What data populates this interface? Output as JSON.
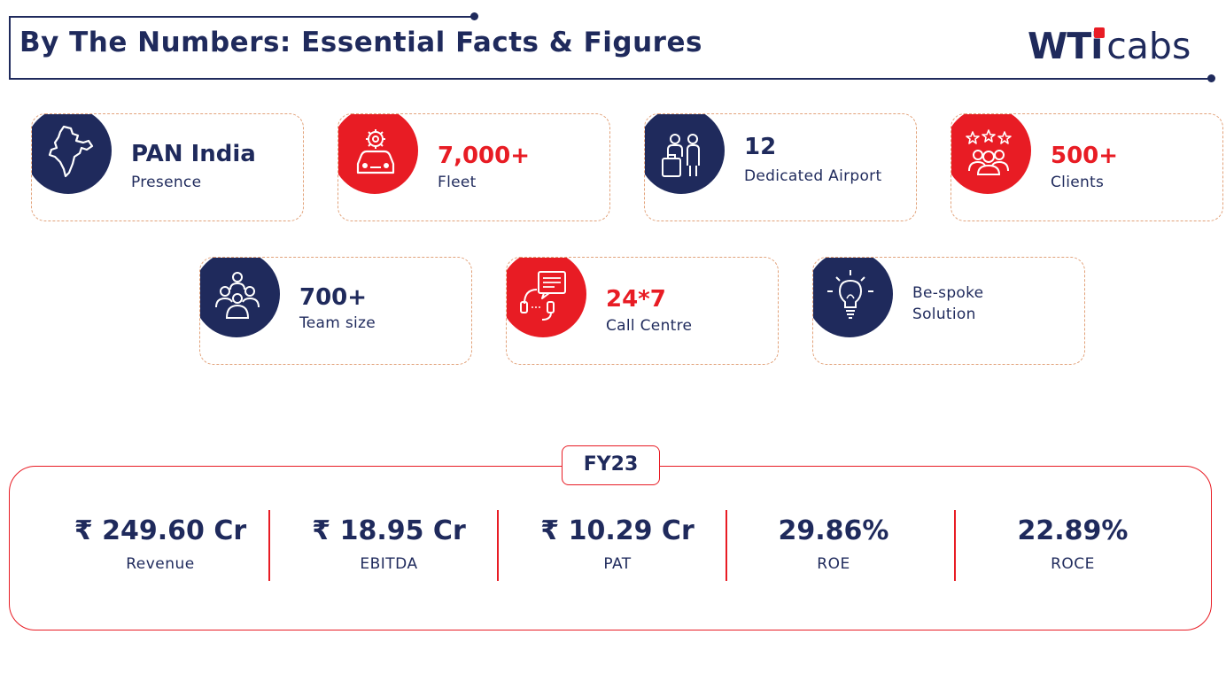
{
  "header": {
    "title": "By The Numbers: Essential Facts & Figures",
    "logo": {
      "part1": "WT",
      "part2": "i",
      "part3": "cabs"
    }
  },
  "colors": {
    "navy": "#1f2a5c",
    "red": "#e81c24",
    "dashed_border": "#e2a27a"
  },
  "cards": [
    {
      "value": "PAN India",
      "label": "Presence",
      "icon": "india-map-icon",
      "theme": "navy"
    },
    {
      "value": "7,000+",
      "label": "Fleet",
      "icon": "car-gear-icon",
      "theme": "red"
    },
    {
      "value": "12",
      "label": "Dedicated Airport",
      "icon": "travellers-luggage-icon",
      "theme": "navy"
    },
    {
      "value": "500+",
      "label": "Clients",
      "icon": "clients-stars-icon",
      "theme": "red"
    },
    {
      "value": "700+",
      "label": "Team size",
      "icon": "team-icon",
      "theme": "navy"
    },
    {
      "value": "24*7",
      "label": "Call Centre",
      "icon": "headset-chat-icon",
      "theme": "red"
    },
    {
      "value": "",
      "label_line1": "Be-spoke",
      "label_line2": "Solution",
      "icon": "lightbulb-icon",
      "theme": "navy"
    }
  ],
  "fy": {
    "tag": "FY23",
    "metrics": [
      {
        "value": "₹ 249.60 Cr",
        "label": "Revenue"
      },
      {
        "value": "₹ 18.95 Cr",
        "label": "EBITDA"
      },
      {
        "value": "₹ 10.29 Cr",
        "label": "PAT"
      },
      {
        "value": "29.86%",
        "label": "ROE"
      },
      {
        "value": "22.89%",
        "label": "ROCE"
      }
    ]
  }
}
